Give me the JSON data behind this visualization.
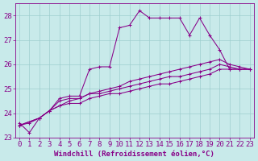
{
  "xlabel": "Windchill (Refroidissement éolien,°C)",
  "background_color": "#c8eaea",
  "line_color": "#880088",
  "xlim_min": -0.4,
  "xlim_max": 23.4,
  "ylim_min": 23.0,
  "ylim_max": 28.5,
  "yticks": [
    23,
    24,
    25,
    26,
    27,
    28
  ],
  "xticks": [
    0,
    1,
    2,
    3,
    4,
    5,
    6,
    7,
    8,
    9,
    10,
    11,
    12,
    13,
    14,
    15,
    16,
    17,
    18,
    19,
    20,
    21,
    22,
    23
  ],
  "series": [
    {
      "x": [
        0,
        1,
        2,
        3,
        4,
        5,
        6,
        7,
        8,
        9,
        10,
        11,
        12,
        13,
        14,
        15,
        16,
        17,
        18,
        19,
        20,
        21,
        22,
        23
      ],
      "y": [
        23.6,
        23.2,
        23.8,
        24.1,
        24.6,
        24.7,
        24.7,
        25.8,
        25.9,
        25.9,
        27.5,
        27.6,
        28.2,
        27.9,
        27.9,
        27.9,
        27.9,
        27.2,
        27.9,
        27.2,
        26.6,
        25.8,
        25.8,
        25.8
      ]
    },
    {
      "x": [
        0,
        1,
        2,
        3,
        4,
        5,
        6,
        7,
        8,
        9,
        10,
        11,
        12,
        13,
        14,
        15,
        16,
        17,
        18,
        19,
        20,
        21,
        22,
        23
      ],
      "y": [
        23.5,
        23.6,
        23.8,
        24.1,
        24.3,
        24.5,
        24.6,
        24.8,
        24.9,
        25.0,
        25.1,
        25.3,
        25.4,
        25.5,
        25.6,
        25.7,
        25.8,
        25.9,
        26.0,
        26.1,
        26.2,
        26.0,
        25.9,
        25.8
      ]
    },
    {
      "x": [
        0,
        2,
        3,
        4,
        5,
        6,
        7,
        8,
        9,
        10,
        11,
        12,
        13,
        14,
        15,
        16,
        17,
        18,
        19,
        20,
        21,
        22,
        23
      ],
      "y": [
        23.5,
        23.8,
        24.1,
        24.5,
        24.6,
        24.6,
        24.8,
        24.8,
        24.9,
        25.0,
        25.1,
        25.2,
        25.3,
        25.4,
        25.5,
        25.5,
        25.6,
        25.7,
        25.8,
        26.0,
        25.9,
        25.8,
        25.8
      ]
    },
    {
      "x": [
        0,
        2,
        3,
        4,
        5,
        6,
        7,
        8,
        9,
        10,
        11,
        12,
        13,
        14,
        15,
        16,
        17,
        18,
        19,
        20,
        21,
        22,
        23
      ],
      "y": [
        23.5,
        23.8,
        24.1,
        24.3,
        24.4,
        24.4,
        24.6,
        24.7,
        24.8,
        24.8,
        24.9,
        25.0,
        25.1,
        25.2,
        25.2,
        25.3,
        25.4,
        25.5,
        25.6,
        25.8,
        25.8,
        25.8,
        25.8
      ]
    }
  ],
  "grid_color": "#9ecece",
  "font_family": "monospace",
  "font_color": "#880088",
  "font_size": 6.5
}
